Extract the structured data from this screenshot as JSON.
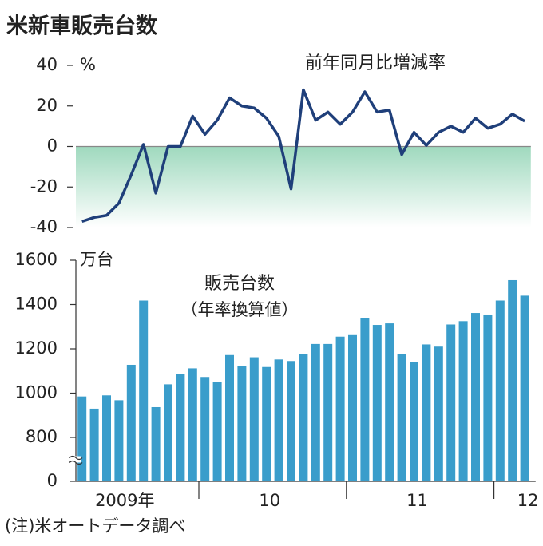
{
  "title": "米新車販売台数",
  "note": "(注)米オートデータ調べ",
  "chart_data": [
    {
      "type": "line",
      "title": "前年同月比増減率",
      "unit": "%",
      "color": "#1f3f7a",
      "values": [
        -37,
        -35,
        -34,
        -28,
        -14,
        1,
        -23,
        0,
        0,
        15,
        6,
        13,
        24,
        20,
        19,
        14,
        5,
        -21,
        28,
        13,
        17,
        11,
        17,
        27,
        17,
        18,
        -4,
        7,
        0.5,
        7,
        10,
        7,
        14,
        9,
        11,
        16,
        12.5
      ],
      "ylim": [
        -40,
        40
      ],
      "yticks": [
        -40,
        -20,
        0,
        20,
        40
      ]
    },
    {
      "type": "bar",
      "title": "販売台数",
      "subtitle": "（年率換算値）",
      "unit": "万台",
      "color": "#3a9dcb",
      "categories": [
        null,
        null,
        null,
        null,
        "2009年",
        null,
        null,
        null,
        null,
        null,
        null,
        null,
        null,
        null,
        null,
        "10",
        null,
        null,
        null,
        null,
        null,
        null,
        null,
        null,
        null,
        null,
        null,
        "11",
        null,
        null,
        null,
        null,
        null,
        null,
        null,
        null,
        "12"
      ],
      "values": [
        985,
        930,
        990,
        968,
        1128,
        1418,
        937,
        1040,
        1085,
        1112,
        1073,
        1050,
        1172,
        1124,
        1162,
        1118,
        1152,
        1145,
        1175,
        1222,
        1222,
        1255,
        1262,
        1338,
        1308,
        1315,
        1177,
        1142,
        1220,
        1210,
        1310,
        1325,
        1362,
        1355,
        1418,
        1510,
        1440
      ],
      "ylim": [
        0,
        1600
      ],
      "yticks": [
        0,
        800,
        1000,
        1200,
        1400,
        1600
      ],
      "axis_break": true
    }
  ]
}
